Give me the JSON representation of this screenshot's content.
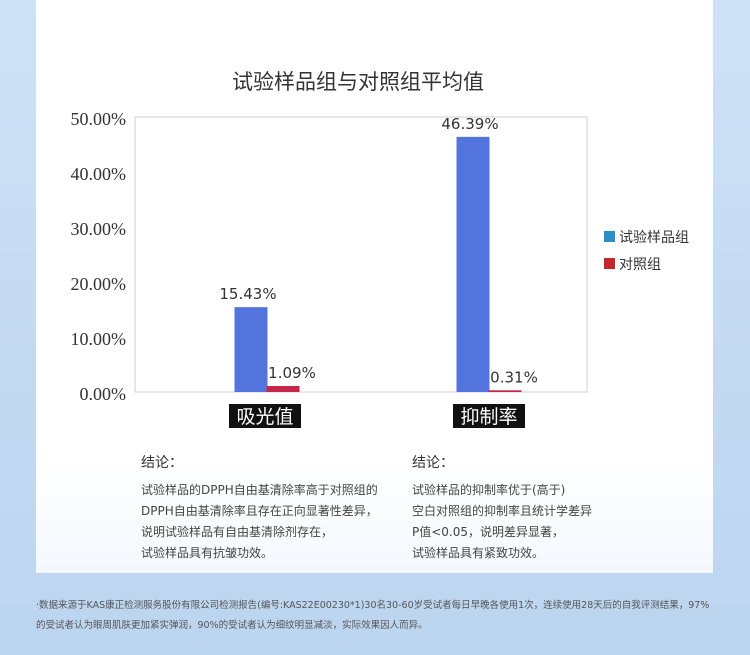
{
  "chart_data": {
    "type": "bar",
    "title": "试验样品组与对照组平均值",
    "categories": [
      "吸光值",
      "抑制率"
    ],
    "series": [
      {
        "name": "试验样品组",
        "color": "#5374dc",
        "values": [
          15.43,
          46.39
        ],
        "labels": [
          "15.43%",
          "46.39%"
        ]
      },
      {
        "name": "对照组",
        "color": "#c4264a",
        "values": [
          1.09,
          0.31
        ],
        "labels": [
          "1.09%",
          "0.31%"
        ]
      }
    ],
    "ylim": [
      0,
      50
    ],
    "yticks": [
      0,
      10,
      20,
      30,
      40,
      50
    ],
    "ytick_labels": [
      "0.00%",
      "10.00%",
      "20.00%",
      "30.00%",
      "40.00%",
      "50.00%"
    ],
    "legend_position": "right",
    "legend_colors": [
      "#2c8ec6",
      "#c4262e"
    ],
    "grid": false,
    "xlabel": "",
    "ylabel": ""
  },
  "conclusions": [
    {
      "title": "结论：",
      "lines": [
        "试验样品的DPPH自由基清除率高于对照组的",
        "DPPH自由基清除率且存在正向显著性差异，",
        "说明试验样品有自由基清除剂存在，",
        "试验样品具有抗皱功效。"
      ]
    },
    {
      "title": "结论：",
      "lines": [
        "试验样品的抑制率优于(高于)",
        "空白对照组的抑制率且统计学差异",
        "P值<0.05，说明差异显著，",
        "试验样品具有紧致功效。"
      ]
    }
  ],
  "footnote": "·数据来源于KAS康正检测服务股份有限公司检测报告(编号:KAS22E00230*1)30名30-60岁受试者每日早晚各使用1次，连续使用28天后的自我评测结果，97%的受试者认为眼周肌肤更加紧实弹润，90%的受试者认为细纹明显减淡，实际效果因人而异。"
}
